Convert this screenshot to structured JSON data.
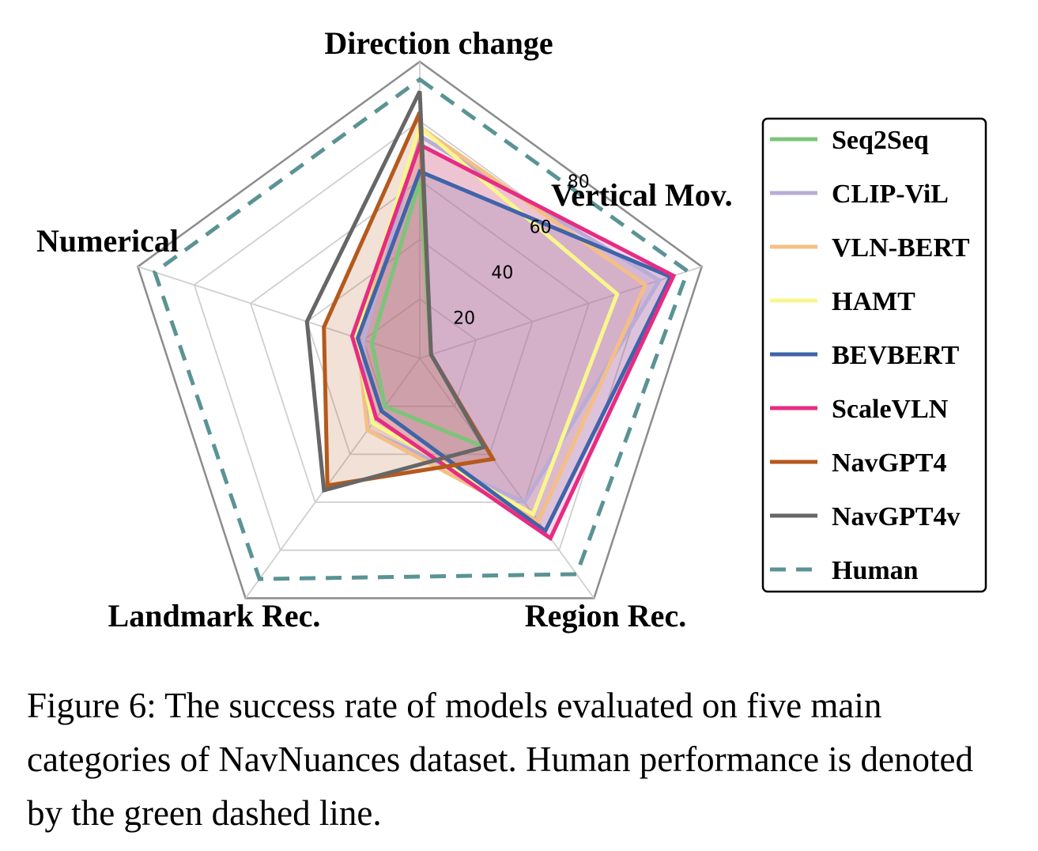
{
  "chart_data": {
    "type": "radar",
    "axes": [
      "Direction change",
      "Vertical Mov.",
      "Region Rec.",
      "Landmark Rec.",
      "Numerical"
    ],
    "r_ticks": [
      20,
      40,
      60,
      80
    ],
    "r_range": [
      0,
      100
    ],
    "grid": true,
    "legend_position": "right",
    "series": [
      {
        "name": "Seq2Seq",
        "color": "#7cc47a",
        "style": "solid",
        "fill": false,
        "values": [
          60,
          4,
          37,
          20,
          17
        ]
      },
      {
        "name": "CLIP-ViL",
        "color": "#b9acd6",
        "style": "solid",
        "fill": true,
        "values": [
          75,
          85,
          60,
          30,
          20
        ]
      },
      {
        "name": "VLN-BERT",
        "color": "#f4bf85",
        "style": "solid",
        "fill": true,
        "values": [
          78,
          80,
          68,
          30,
          22
        ]
      },
      {
        "name": "HAMT",
        "color": "#f8f68e",
        "style": "solid",
        "fill": false,
        "values": [
          78,
          70,
          65,
          27,
          23
        ]
      },
      {
        "name": "BEVBERT",
        "color": "#3f64a9",
        "style": "solid",
        "fill": true,
        "values": [
          63,
          89,
          72,
          22,
          22
        ]
      },
      {
        "name": "ScaleVLN",
        "color": "#e62c83",
        "style": "solid",
        "fill": true,
        "values": [
          72,
          90,
          75,
          25,
          24
        ]
      },
      {
        "name": "NavGPT4",
        "color": "#b5591c",
        "style": "solid",
        "fill": true,
        "values": [
          83,
          4,
          42,
          53,
          34
        ]
      },
      {
        "name": "NavGPT4v",
        "color": "#666666",
        "style": "solid",
        "fill": false,
        "values": [
          90,
          4,
          37,
          55,
          40
        ]
      },
      {
        "name": "Human",
        "color": "#5a9395",
        "style": "dashed",
        "fill": false,
        "values": [
          94,
          95,
          90,
          92,
          94
        ]
      }
    ]
  },
  "caption": "Figure 6: The success rate of models evaluated on five main categories of NavNuances dataset. Human performance is denoted by the green dashed line."
}
